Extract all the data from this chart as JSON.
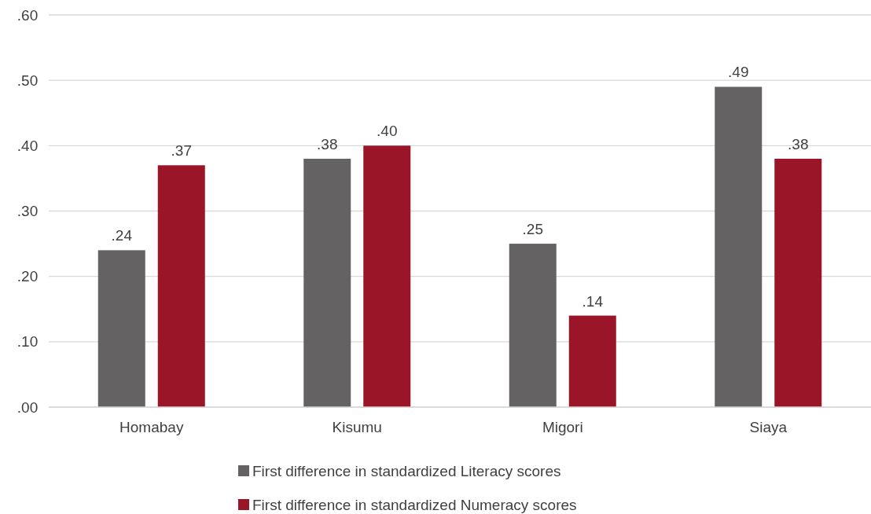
{
  "chart_data": {
    "type": "bar",
    "categories": [
      "Homabay",
      "Kisumu",
      "Migori",
      "Siaya"
    ],
    "series": [
      {
        "name": "First difference in standardized Literacy scores",
        "color": "#646263",
        "values": [
          0.24,
          0.38,
          0.25,
          0.49
        ],
        "value_labels": [
          ".24",
          ".38",
          ".25",
          ".49"
        ]
      },
      {
        "name": "First difference in standardized Numeracy scores",
        "color": "#9b1528",
        "values": [
          0.37,
          0.4,
          0.14,
          0.38
        ],
        "value_labels": [
          ".37",
          ".40",
          ".14",
          ".38"
        ]
      }
    ],
    "ylim": [
      0,
      0.6
    ],
    "yticks": [
      {
        "value": 0,
        "label": ".00"
      },
      {
        "value": 0.1,
        "label": ".10"
      },
      {
        "value": 0.2,
        "label": ".20"
      },
      {
        "value": 0.3,
        "label": ".30"
      },
      {
        "value": 0.4,
        "label": ".40"
      },
      {
        "value": 0.5,
        "label": ".50"
      },
      {
        "value": 0.6,
        "label": ".60"
      }
    ],
    "grid": "y",
    "legend": "bottom"
  }
}
